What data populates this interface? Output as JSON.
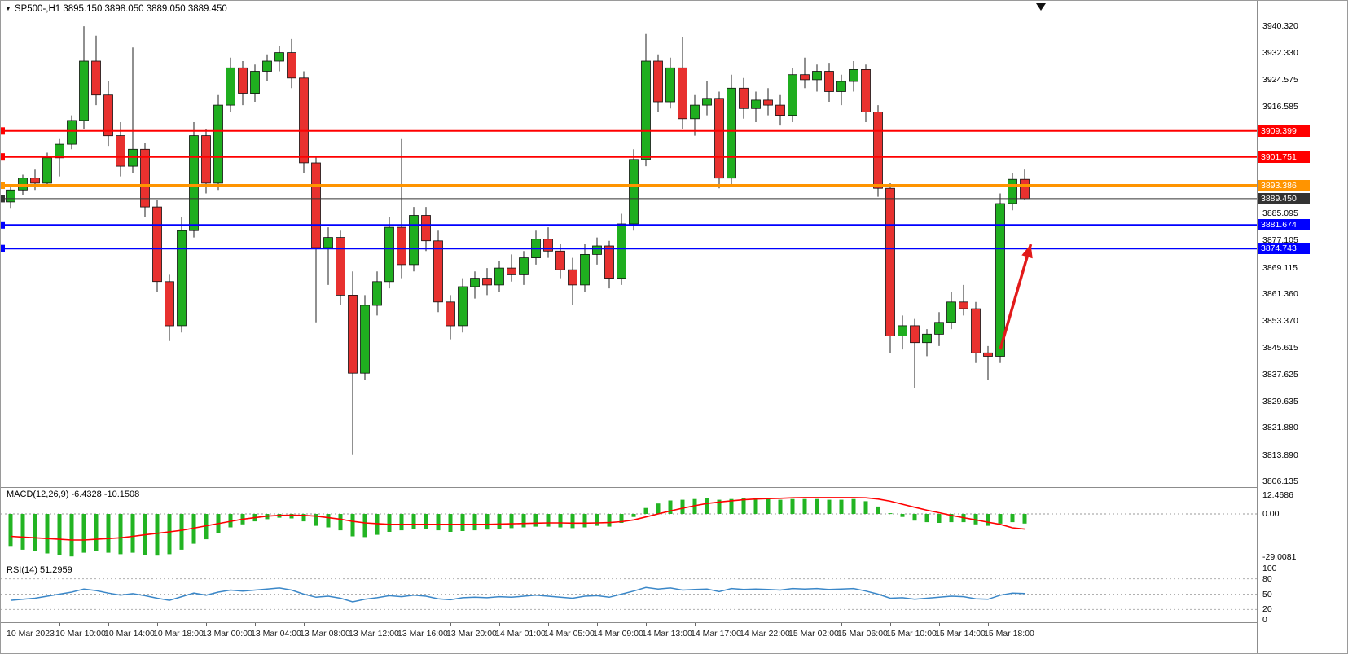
{
  "header": {
    "title": "SP500-,H1 3895.150 3898.050 3889.050 3889.450",
    "symbol": "SP500-,H1"
  },
  "chart_data": {
    "type": "candlestick",
    "symbol": "SP500-,H1",
    "timeframe": "H1",
    "title": "SP500-,H1 3895.150 3898.050 3889.050 3889.450",
    "last_ohlc": {
      "open": 3895.15,
      "high": 3898.05,
      "low": 3889.05,
      "close": 3889.45
    },
    "ylim": [
      3806.135,
      3940.32
    ],
    "grid": false,
    "colors": {
      "bull": "#1fae1f",
      "bear": "#e8312f",
      "wick": "#222222",
      "macd_hist": "#23b423",
      "macd_signal": "#ff0000",
      "rsi_line": "#3a87c8",
      "arrow": "#e21a1a"
    },
    "price_ticks": [
      3940.32,
      3932.33,
      3924.575,
      3916.585,
      3885.095,
      3877.105,
      3869.115,
      3861.36,
      3853.37,
      3845.615,
      3837.625,
      3829.635,
      3821.88,
      3813.89,
      3806.135
    ],
    "hlines": [
      {
        "price": 3909.399,
        "label": "3909.399",
        "color": "#ff0000",
        "width": 2
      },
      {
        "price": 3901.751,
        "label": "3901.751",
        "color": "#ff0000",
        "width": 2
      },
      {
        "price": 3893.386,
        "label": "3893.386",
        "color": "#ff9400",
        "width": 3
      },
      {
        "price": 3889.45,
        "label": "3889.450",
        "color": "#333333",
        "width": 1
      },
      {
        "price": 3881.674,
        "label": "3881.674",
        "color": "#0000ff",
        "width": 2
      },
      {
        "price": 3874.743,
        "label": "3874.743",
        "color": "#0000ff",
        "width": 2
      }
    ],
    "time_labels": [
      {
        "i": 0,
        "t": "10 Mar 2023"
      },
      {
        "i": 4,
        "t": "10 Mar 10:00"
      },
      {
        "i": 8,
        "t": "10 Mar 14:00"
      },
      {
        "i": 12,
        "t": "10 Mar 18:00"
      },
      {
        "i": 16,
        "t": "13 Mar 00:00"
      },
      {
        "i": 20,
        "t": "13 Mar 04:00"
      },
      {
        "i": 24,
        "t": "13 Mar 08:00"
      },
      {
        "i": 28,
        "t": "13 Mar 12:00"
      },
      {
        "i": 32,
        "t": "13 Mar 16:00"
      },
      {
        "i": 36,
        "t": "13 Mar 20:00"
      },
      {
        "i": 40,
        "t": "14 Mar 01:00"
      },
      {
        "i": 44,
        "t": "14 Mar 05:00"
      },
      {
        "i": 48,
        "t": "14 Mar 09:00"
      },
      {
        "i": 52,
        "t": "14 Mar 13:00"
      },
      {
        "i": 56,
        "t": "14 Mar 17:00"
      },
      {
        "i": 60,
        "t": "14 Mar 22:00"
      },
      {
        "i": 64,
        "t": "15 Mar 02:00"
      },
      {
        "i": 68,
        "t": "15 Mar 06:00"
      },
      {
        "i": 72,
        "t": "15 Mar 10:00"
      },
      {
        "i": 76,
        "t": "15 Mar 14:00"
      },
      {
        "i": 80,
        "t": "15 Mar 18:00"
      }
    ],
    "candles": [
      [
        3888.5,
        3893.0,
        3886.5,
        3892.0
      ],
      [
        3892.0,
        3896.5,
        3890.5,
        3895.5
      ],
      [
        3895.5,
        3898.0,
        3892.0,
        3894.0
      ],
      [
        3894.0,
        3903.0,
        3893.0,
        3901.5
      ],
      [
        3901.5,
        3907.0,
        3896.0,
        3905.5
      ],
      [
        3905.5,
        3914.0,
        3904.0,
        3912.5
      ],
      [
        3912.5,
        3940.3,
        3910.0,
        3930.0
      ],
      [
        3930.0,
        3937.5,
        3917.0,
        3920.0
      ],
      [
        3920.0,
        3924.0,
        3905.0,
        3908.0
      ],
      [
        3908.0,
        3912.0,
        3896.0,
        3899.0
      ],
      [
        3899.0,
        3934.0,
        3897.0,
        3904.0
      ],
      [
        3904.0,
        3906.0,
        3884.0,
        3887.0
      ],
      [
        3887.0,
        3889.0,
        3862.0,
        3865.0
      ],
      [
        3865.0,
        3867.0,
        3847.5,
        3852.0
      ],
      [
        3852.0,
        3884.0,
        3850.0,
        3880.0
      ],
      [
        3880.0,
        3912.0,
        3878.0,
        3908.0
      ],
      [
        3908.0,
        3910.0,
        3891.0,
        3894.0
      ],
      [
        3894.0,
        3920.0,
        3892.0,
        3917.0
      ],
      [
        3917.0,
        3931.0,
        3915.0,
        3928.0
      ],
      [
        3928.0,
        3930.0,
        3917.0,
        3920.5
      ],
      [
        3920.5,
        3929.0,
        3918.0,
        3927.0
      ],
      [
        3927.0,
        3932.0,
        3924.0,
        3930.0
      ],
      [
        3930.0,
        3934.5,
        3927.0,
        3932.5
      ],
      [
        3932.5,
        3936.5,
        3922.0,
        3925.0
      ],
      [
        3925.0,
        3927.0,
        3897.0,
        3900.0
      ],
      [
        3900.0,
        3902.0,
        3853.0,
        3875.0
      ],
      [
        3875.0,
        3881.0,
        3864.0,
        3878.0
      ],
      [
        3878.0,
        3880.0,
        3858.0,
        3861.0
      ],
      [
        3861.0,
        3868.0,
        3813.9,
        3838.0
      ],
      [
        3838.0,
        3861.0,
        3836.0,
        3858.0
      ],
      [
        3858.0,
        3868.0,
        3855.0,
        3865.0
      ],
      [
        3865.0,
        3884.0,
        3863.0,
        3881.0
      ],
      [
        3881.0,
        3907.0,
        3866.0,
        3870.0
      ],
      [
        3870.0,
        3887.0,
        3868.0,
        3884.5
      ],
      [
        3884.5,
        3887.0,
        3874.0,
        3877.0
      ],
      [
        3877.0,
        3880.0,
        3856.0,
        3859.0
      ],
      [
        3859.0,
        3861.0,
        3848.0,
        3852.0
      ],
      [
        3852.0,
        3866.0,
        3850.0,
        3863.5
      ],
      [
        3863.5,
        3868.0,
        3860.0,
        3866.0
      ],
      [
        3866.0,
        3869.0,
        3861.0,
        3864.0
      ],
      [
        3864.0,
        3871.0,
        3862.0,
        3869.0
      ],
      [
        3869.0,
        3873.0,
        3865.0,
        3867.0
      ],
      [
        3867.0,
        3874.0,
        3864.0,
        3872.0
      ],
      [
        3872.0,
        3880.0,
        3870.0,
        3877.5
      ],
      [
        3877.5,
        3881.0,
        3872.0,
        3874.0
      ],
      [
        3874.0,
        3876.0,
        3866.0,
        3868.5
      ],
      [
        3868.5,
        3872.0,
        3858.0,
        3864.0
      ],
      [
        3864.0,
        3876.0,
        3862.0,
        3873.0
      ],
      [
        3873.0,
        3878.0,
        3870.0,
        3875.5
      ],
      [
        3875.5,
        3877.0,
        3863.0,
        3866.0
      ],
      [
        3866.0,
        3885.0,
        3864.0,
        3882.0
      ],
      [
        3882.0,
        3904.0,
        3880.0,
        3901.0
      ],
      [
        3901.0,
        3938.0,
        3899.0,
        3930.0
      ],
      [
        3930.0,
        3932.0,
        3915.0,
        3918.0
      ],
      [
        3918.0,
        3931.0,
        3916.0,
        3928.0
      ],
      [
        3928.0,
        3937.0,
        3910.0,
        3913.0
      ],
      [
        3913.0,
        3920.0,
        3908.0,
        3917.0
      ],
      [
        3917.0,
        3924.0,
        3914.0,
        3919.0
      ],
      [
        3919.0,
        3921.0,
        3892.5,
        3895.5
      ],
      [
        3895.5,
        3926.0,
        3893.0,
        3922.0
      ],
      [
        3922.0,
        3925.0,
        3913.0,
        3916.0
      ],
      [
        3916.0,
        3921.0,
        3912.0,
        3918.5
      ],
      [
        3918.5,
        3922.0,
        3914.0,
        3917.0
      ],
      [
        3917.0,
        3920.0,
        3911.0,
        3914.0
      ],
      [
        3914.0,
        3928.0,
        3912.0,
        3926.0
      ],
      [
        3926.0,
        3931.0,
        3922.0,
        3924.5
      ],
      [
        3924.5,
        3929.0,
        3921.0,
        3927.0
      ],
      [
        3927.0,
        3929.5,
        3918.0,
        3921.0
      ],
      [
        3921.0,
        3926.0,
        3917.0,
        3924.0
      ],
      [
        3924.0,
        3930.0,
        3921.0,
        3927.5
      ],
      [
        3927.5,
        3929.0,
        3912.0,
        3915.0
      ],
      [
        3915.0,
        3917.0,
        3890.0,
        3892.5
      ],
      [
        3892.5,
        3894.0,
        3844.0,
        3849.0
      ],
      [
        3849.0,
        3855.0,
        3845.0,
        3852.0
      ],
      [
        3852.0,
        3854.0,
        3833.5,
        3847.0
      ],
      [
        3847.0,
        3851.0,
        3843.0,
        3849.5
      ],
      [
        3849.5,
        3856.0,
        3846.0,
        3853.0
      ],
      [
        3853.0,
        3862.0,
        3851.0,
        3859.0
      ],
      [
        3859.0,
        3864.0,
        3855.0,
        3857.0
      ],
      [
        3857.0,
        3859.0,
        3841.0,
        3844.0
      ],
      [
        3844.0,
        3846.0,
        3836.0,
        3843.0
      ],
      [
        3843.0,
        3891.0,
        3841.0,
        3888.0
      ],
      [
        3888.0,
        3897.0,
        3886.0,
        3895.15
      ],
      [
        3895.15,
        3898.05,
        3889.05,
        3889.45
      ]
    ],
    "macd": {
      "label": "MACD(12,26,9) -6.4328 -10.1508",
      "range": [
        -29.0081,
        12.4686
      ],
      "axis_labels": [
        {
          "text": "12.4686",
          "value": 12.4686
        },
        {
          "text": "0.00",
          "value": 0
        },
        {
          "text": "-29.0081",
          "value": -29.0081
        }
      ],
      "histogram": [
        -22,
        -24,
        -25,
        -26.5,
        -27.5,
        -28.5,
        -26,
        -25,
        -26,
        -27,
        -26,
        -27.5,
        -28,
        -27,
        -24,
        -20,
        -17,
        -13,
        -9,
        -7,
        -5,
        -3.5,
        -2.5,
        -3,
        -5,
        -8,
        -9,
        -11,
        -15,
        -15.5,
        -14,
        -12,
        -11,
        -10,
        -10,
        -11,
        -12,
        -11.5,
        -11,
        -10.5,
        -10,
        -9.5,
        -9,
        -8.5,
        -8.5,
        -9,
        -9.5,
        -9,
        -8,
        -8.5,
        -6,
        -2,
        4,
        7,
        9,
        9.5,
        10,
        10.5,
        9.5,
        10,
        10.5,
        10.5,
        10,
        9.5,
        10,
        10,
        10,
        9.5,
        9.5,
        10,
        8.5,
        5,
        0.5,
        -2,
        -4.5,
        -5.5,
        -6,
        -5.5,
        -5.5,
        -7,
        -8,
        -6.5,
        -5.5,
        -6.43
      ],
      "signal": [
        -15,
        -15.5,
        -16,
        -16.5,
        -17,
        -17.5,
        -17.5,
        -17,
        -16.5,
        -16,
        -15,
        -14,
        -13,
        -12,
        -11,
        -9.5,
        -8,
        -6.5,
        -5,
        -3.5,
        -2.5,
        -1.5,
        -1,
        -0.8,
        -1,
        -1.5,
        -2.5,
        -3.5,
        -5,
        -6,
        -6.5,
        -7,
        -7,
        -7,
        -7,
        -7,
        -7,
        -7,
        -7,
        -7,
        -6.8,
        -6.6,
        -6.4,
        -6.2,
        -6,
        -6,
        -6.2,
        -6.2,
        -6,
        -5.8,
        -5.2,
        -4,
        -2,
        0,
        2,
        3.8,
        5.5,
        7,
        8,
        8.8,
        9.5,
        10,
        10.3,
        10.5,
        10.8,
        11,
        11,
        11,
        11,
        11,
        10.8,
        10,
        8.5,
        6.5,
        4.5,
        2.5,
        0.8,
        -1,
        -2.5,
        -4,
        -5.5,
        -7,
        -9.3,
        -10.15
      ]
    },
    "rsi": {
      "label": "RSI(14) 51.2959",
      "range": [
        0,
        100
      ],
      "levels": [
        80,
        50,
        20
      ],
      "axis_labels": [
        {
          "text": "100",
          "value": 100
        },
        {
          "text": "80",
          "value": 80
        },
        {
          "text": "50",
          "value": 50
        },
        {
          "text": "20",
          "value": 20
        },
        {
          "text": "0",
          "value": 0
        }
      ],
      "values": [
        38,
        40,
        42,
        46,
        50,
        54,
        60,
        57,
        52,
        48,
        51,
        47,
        42,
        38,
        45,
        52,
        48,
        54,
        58,
        56,
        58,
        60,
        62,
        58,
        50,
        44,
        46,
        42,
        35,
        40,
        43,
        47,
        45,
        48,
        46,
        41,
        39,
        43,
        44,
        43,
        45,
        44,
        46,
        48,
        46,
        44,
        42,
        46,
        47,
        44,
        50,
        56,
        63,
        60,
        62,
        58,
        59,
        60,
        55,
        61,
        59,
        60,
        59,
        58,
        61,
        60,
        61,
        59,
        60,
        61,
        56,
        50,
        42,
        43,
        40,
        42,
        44,
        46,
        45,
        41,
        40,
        48,
        52,
        51.3
      ]
    },
    "arrow": {
      "from_index": 81,
      "from_price": 3845,
      "to_index": 83.5,
      "to_price": 3876
    }
  }
}
